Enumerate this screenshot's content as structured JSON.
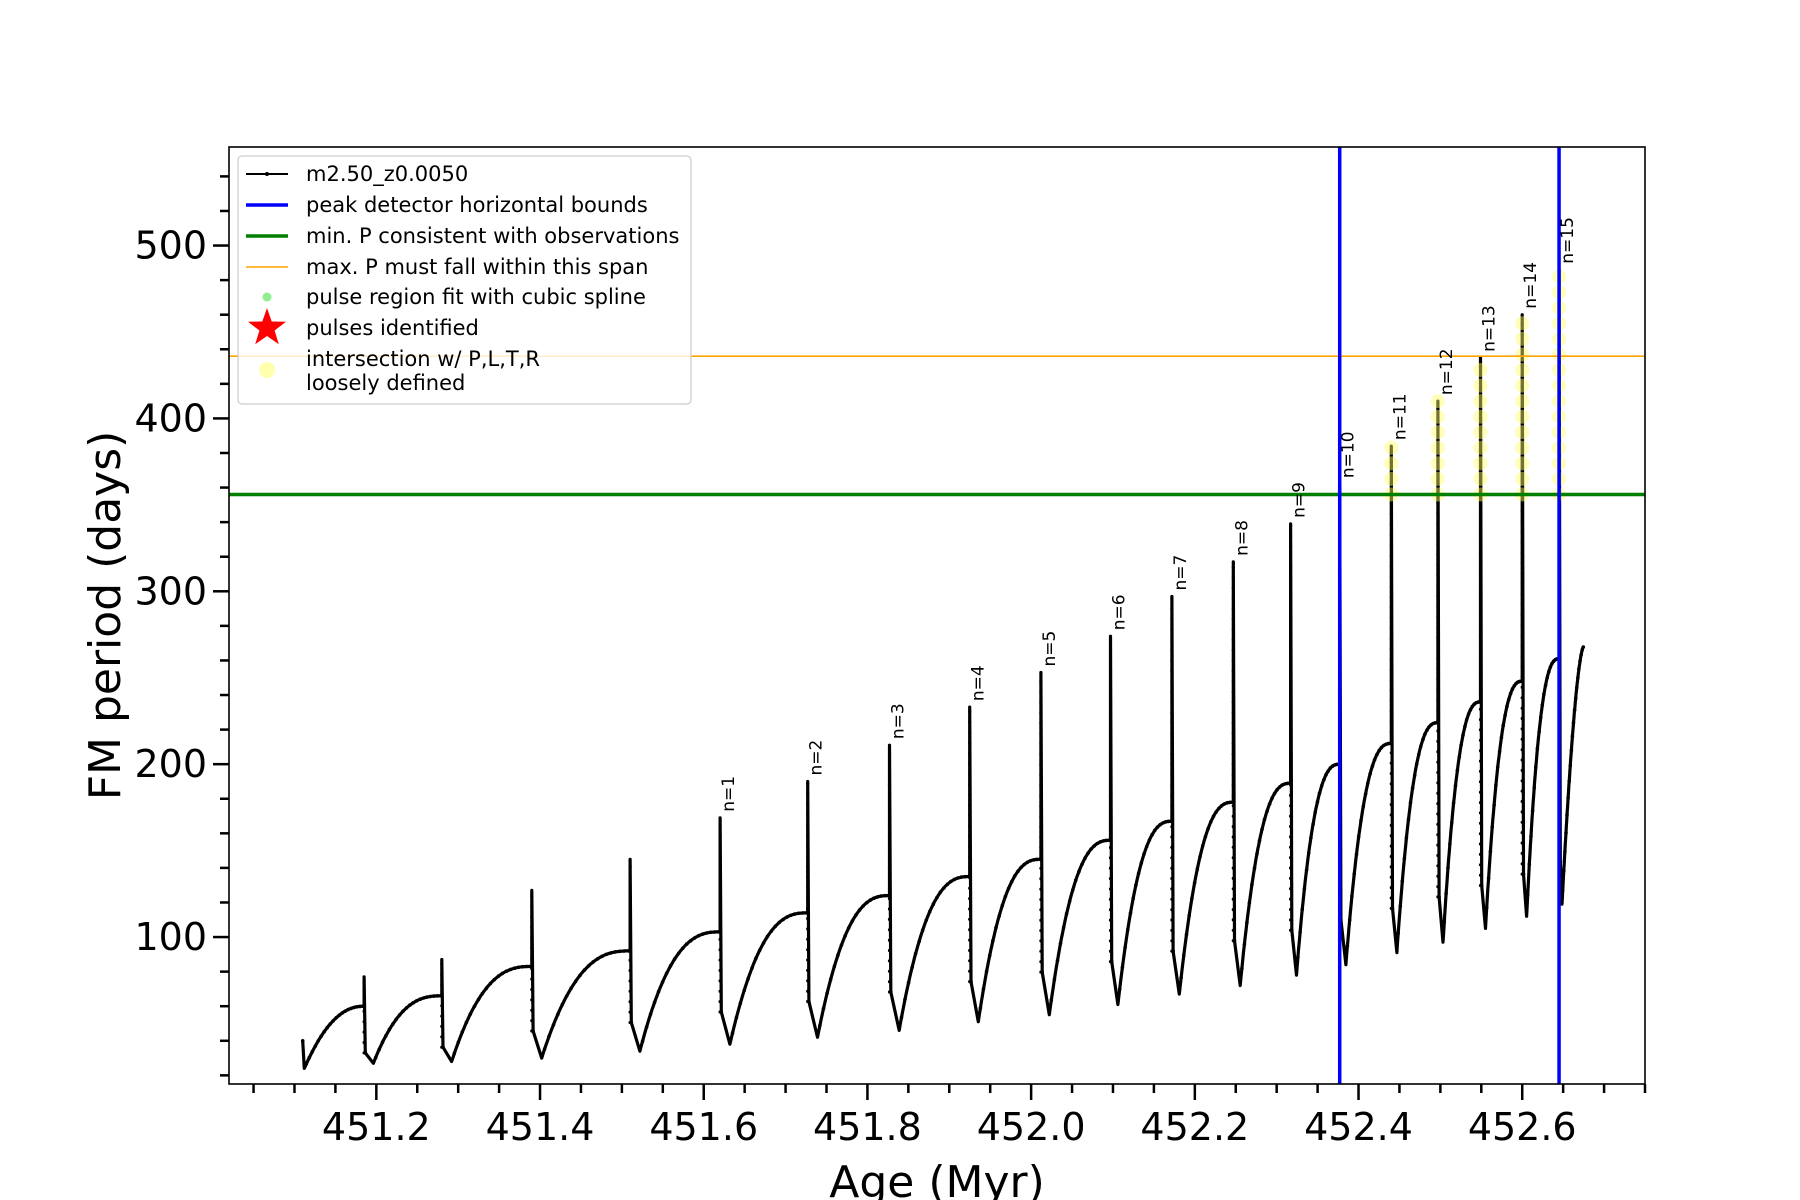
{
  "chart_data": {
    "type": "line",
    "title": "",
    "xlabel": "Age (Myr)",
    "ylabel": "FM period (days)",
    "xlim": [
      451.02,
      452.75
    ],
    "ylim": [
      15,
      557
    ],
    "x_major_ticks": [
      451.2,
      451.4,
      451.6,
      451.8,
      452.0,
      452.2,
      452.4,
      452.6
    ],
    "x_tick_labels": [
      "451.2",
      "451.4",
      "451.6",
      "451.8",
      "452.0",
      "452.2",
      "452.4",
      "452.6"
    ],
    "y_major_ticks": [
      100,
      200,
      300,
      400,
      500
    ],
    "y_tick_labels": [
      "100",
      "200",
      "300",
      "400",
      "500"
    ],
    "x_minor_step": 0.05,
    "y_minor_step": 20,
    "grid": false,
    "legend_position": "top-left",
    "legend": [
      {
        "label": "m2.50_z0.0050",
        "kind": "line-marker",
        "color": "#000000"
      },
      {
        "label": "peak detector horizontal bounds",
        "kind": "line",
        "color": "#0000ff"
      },
      {
        "label": "min. P consistent with observations",
        "kind": "line",
        "color": "#007f00"
      },
      {
        "label": "max. P must fall within this span",
        "kind": "thin-line",
        "color": "#ffa500"
      },
      {
        "label": "pulse region fit with cubic spline",
        "kind": "dot",
        "color": "#90ee90"
      },
      {
        "label": "pulses identified",
        "kind": "star",
        "color": "#ff0000"
      },
      {
        "label": "intersection w/ P,L,T,R\nloosely defined",
        "kind": "big-dot",
        "color": "#ffff99"
      }
    ],
    "series_name": "m2.50_z0.0050",
    "series_color": "#000000",
    "start": {
      "x": 451.11,
      "y": 40,
      "min": 24
    },
    "pulses": [
      {
        "x": 451.185,
        "top": 60,
        "spike": 77,
        "min": 27,
        "label": ""
      },
      {
        "x": 451.28,
        "top": 66,
        "spike": 87,
        "min": 28,
        "label": ""
      },
      {
        "x": 451.39,
        "top": 83,
        "spike": 127,
        "min": 30,
        "label": ""
      },
      {
        "x": 451.51,
        "top": 92,
        "spike": 145,
        "min": 34,
        "label": ""
      },
      {
        "x": 451.62,
        "top": 103,
        "spike": 169,
        "min": 38,
        "label": "n=1"
      },
      {
        "x": 451.727,
        "top": 114,
        "spike": 190,
        "min": 42,
        "label": "n=2"
      },
      {
        "x": 451.827,
        "top": 124,
        "spike": 211,
        "min": 46,
        "label": "n=3"
      },
      {
        "x": 451.925,
        "top": 135,
        "spike": 233,
        "min": 51,
        "label": "n=4"
      },
      {
        "x": 452.012,
        "top": 145,
        "spike": 253,
        "min": 55,
        "label": "n=5"
      },
      {
        "x": 452.097,
        "top": 156,
        "spike": 274,
        "min": 61,
        "label": "n=6"
      },
      {
        "x": 452.172,
        "top": 167,
        "spike": 297,
        "min": 67,
        "label": "n=7"
      },
      {
        "x": 452.247,
        "top": 178,
        "spike": 317,
        "min": 72,
        "label": "n=8"
      },
      {
        "x": 452.317,
        "top": 189,
        "spike": 339,
        "min": 78,
        "label": "n=9"
      },
      {
        "x": 452.377,
        "top": 200,
        "spike": 362,
        "min": 84,
        "label": "n=10"
      },
      {
        "x": 452.44,
        "top": 212,
        "spike": 384,
        "min": 91,
        "label": "n=11"
      },
      {
        "x": 452.497,
        "top": 224,
        "spike": 410,
        "min": 97,
        "label": "n=12"
      },
      {
        "x": 452.549,
        "top": 236,
        "spike": 435,
        "min": 105,
        "label": "n=13"
      },
      {
        "x": 452.6,
        "top": 248,
        "spike": 460,
        "min": 112,
        "label": "n=14"
      },
      {
        "x": 452.645,
        "top": 261,
        "spike": 486,
        "min": 119,
        "label": "n=15"
      }
    ],
    "end": {
      "x": 452.675,
      "y": 268
    },
    "vertical_bounds": {
      "x": [
        452.377,
        452.645
      ],
      "color": "#0000ff"
    },
    "min_period_line": {
      "y": 356,
      "color": "#007f00"
    },
    "max_period_line": {
      "y": 436,
      "color": "#ffa500"
    },
    "highlight_from_pulse": 10,
    "spline_pulse": 15
  }
}
